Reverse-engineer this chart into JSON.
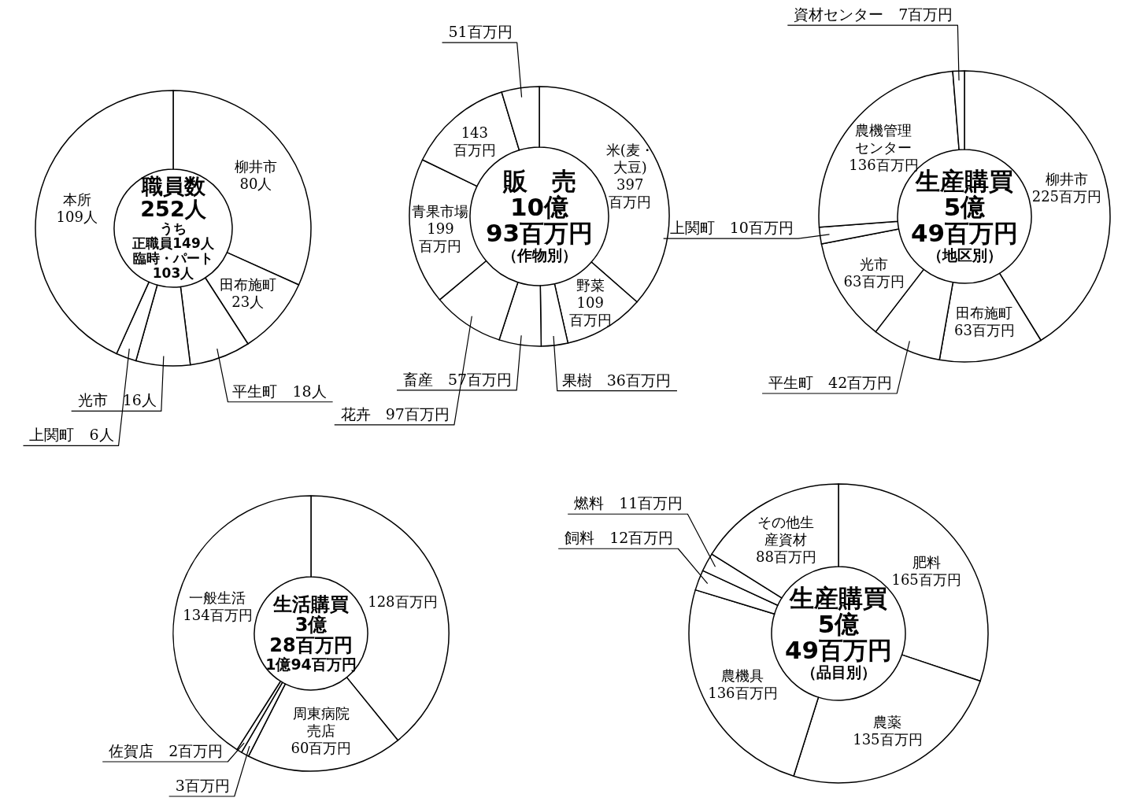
{
  "chart_data": [
    {
      "type": "donut",
      "title": "職員数",
      "subtitle": "252人",
      "annotations": [
        "うち",
        "正職員149人",
        "臨時・パート",
        "103人"
      ],
      "categories": [
        "柳井市",
        "田布施町",
        "平生町",
        "光市",
        "上関町",
        "本所"
      ],
      "values": [
        80,
        23,
        18,
        16,
        6,
        109
      ],
      "value_labels": [
        "80人",
        "23人",
        "18人",
        "16人",
        "6人",
        "109人"
      ],
      "colors": [
        "#ffffff",
        "#ffffff",
        "#ffffff",
        "#ffffff",
        "#ffffff",
        "#ffffff"
      ]
    },
    {
      "type": "donut",
      "title": "販　売",
      "subtitle": "10億 93百万円",
      "annotations": [
        "（作物別）"
      ],
      "categories": [
        "米(麦・大豆)",
        "野菜",
        "果樹",
        "畜産",
        "花卉",
        "青果市場",
        null,
        null
      ],
      "values": [
        397,
        109,
        36,
        57,
        97,
        199,
        143,
        51
      ],
      "value_labels": [
        "397百万円",
        "109百万円",
        "36百万円",
        "57百万円",
        "97百万円",
        "199百万円",
        "143百万円",
        "51百万円"
      ],
      "colors": [
        "#ffffff",
        "#ffffff",
        "#ffffff",
        "#ffffff",
        "#ffffff",
        "#ffffff",
        "#ffffff",
        "#ffffff"
      ]
    },
    {
      "type": "donut",
      "title": "生産購買",
      "subtitle": "5億 49百万円",
      "annotations": [
        "（地区別）"
      ],
      "categories": [
        "柳井市",
        "田布施町",
        "平生町",
        "光市",
        "上関町",
        "農機管理センター",
        "資材センター"
      ],
      "values": [
        225,
        63,
        42,
        63,
        10,
        136,
        7
      ],
      "value_labels": [
        "225百万円",
        "63百万円",
        "42百万円",
        "63百万円",
        "10百万円",
        "136百万円",
        "7百万円"
      ],
      "colors": [
        "#ffffff",
        "#ffffff",
        "#ffffff",
        "#ffffff",
        "#ffffff",
        "#ffffff",
        "#ffffff"
      ]
    },
    {
      "type": "donut",
      "title": "生活購買",
      "subtitle": "3億 28百万円",
      "annotations": [
        "1億94百万円"
      ],
      "categories": [
        null,
        "周東病院売店",
        null,
        "佐賀店",
        "一般生活"
      ],
      "values": [
        128,
        60,
        3,
        2,
        134
      ],
      "value_labels": [
        "128百万円",
        "60百万円",
        "3百万円",
        "2百万円",
        "134百万円"
      ],
      "colors": [
        "#ffffff",
        "#ffffff",
        "#ffffff",
        "#ffffff",
        "#ffffff"
      ]
    },
    {
      "type": "donut",
      "title": "生産購買",
      "subtitle": "5億 49百万円",
      "annotations": [
        "（品目別）"
      ],
      "categories": [
        "肥料",
        "農薬",
        "農機具",
        "飼料",
        "燃料",
        "その他生産資材"
      ],
      "values": [
        165,
        135,
        136,
        12,
        11,
        88
      ],
      "value_labels": [
        "165百万円",
        "135百万円",
        "136百万円",
        "12百万円",
        "11百万円",
        "88百万円"
      ],
      "colors": [
        "#ffffff",
        "#ffffff",
        "#ffffff",
        "#ffffff",
        "#ffffff",
        "#ffffff"
      ]
    }
  ]
}
